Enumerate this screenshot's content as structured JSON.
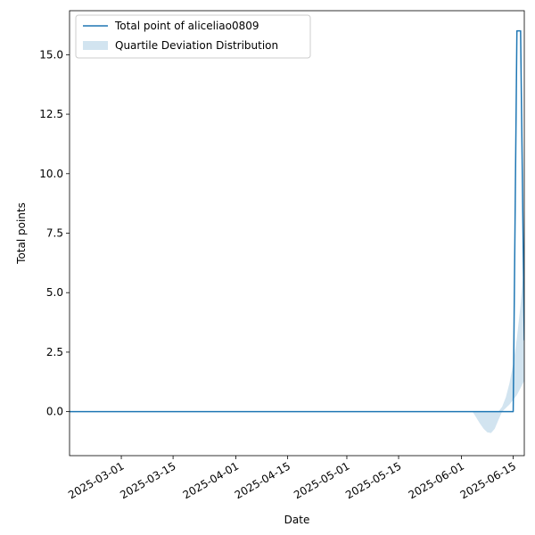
{
  "chart_data": {
    "type": "line",
    "title": "",
    "xlabel": "Date",
    "ylabel": "Total points",
    "xlim": [
      "2025-02-15",
      "2025-06-18"
    ],
    "ylim": [
      -1.85,
      16.85
    ],
    "x_ticks": [
      "2025-03-01",
      "2025-03-15",
      "2025-04-01",
      "2025-04-15",
      "2025-05-01",
      "2025-05-15",
      "2025-06-01",
      "2025-06-15"
    ],
    "y_ticks": [
      0.0,
      2.5,
      5.0,
      7.5,
      10.0,
      12.5,
      15.0
    ],
    "y_tick_labels": [
      "0.0",
      "2.5",
      "5.0",
      "7.5",
      "10.0",
      "12.5",
      "15.0"
    ],
    "grid": false,
    "legend": {
      "position": "top-left"
    },
    "colors": {
      "line": "#1f77b4",
      "band": "#1f77b4"
    },
    "series": [
      {
        "name": "Total point of aliceliao0809",
        "kind": "line",
        "points": [
          {
            "x": "2025-02-15",
            "y": 0
          },
          {
            "x": "2025-06-15",
            "y": 0
          },
          {
            "x": "2025-06-16",
            "y": 16
          },
          {
            "x": "2025-06-17",
            "y": 16
          },
          {
            "x": "2025-06-18",
            "y": 3
          }
        ]
      },
      {
        "name": "Quartile Deviation Distribution",
        "kind": "band",
        "points": [
          {
            "x": "2025-06-04",
            "low": 0.0,
            "high": 0.0
          },
          {
            "x": "2025-06-05",
            "low": -0.25,
            "high": 0.0
          },
          {
            "x": "2025-06-06",
            "low": -0.5,
            "high": 0.0
          },
          {
            "x": "2025-06-07",
            "low": -0.72,
            "high": 0.0
          },
          {
            "x": "2025-06-08",
            "low": -0.87,
            "high": 0.0
          },
          {
            "x": "2025-06-09",
            "low": -0.9,
            "high": 0.0
          },
          {
            "x": "2025-06-10",
            "low": -0.72,
            "high": 0.0
          },
          {
            "x": "2025-06-11",
            "low": -0.35,
            "high": 0.0
          },
          {
            "x": "2025-06-12",
            "low": 0.0,
            "high": 0.2
          },
          {
            "x": "2025-06-13",
            "low": 0.15,
            "high": 0.6
          },
          {
            "x": "2025-06-14",
            "low": 0.3,
            "high": 1.2
          },
          {
            "x": "2025-06-15",
            "low": 0.5,
            "high": 2.0
          },
          {
            "x": "2025-06-16",
            "low": 0.7,
            "high": 3.1
          },
          {
            "x": "2025-06-17",
            "low": 1.0,
            "high": 4.5
          },
          {
            "x": "2025-06-18",
            "low": 1.3,
            "high": 6.3
          }
        ]
      }
    ]
  }
}
